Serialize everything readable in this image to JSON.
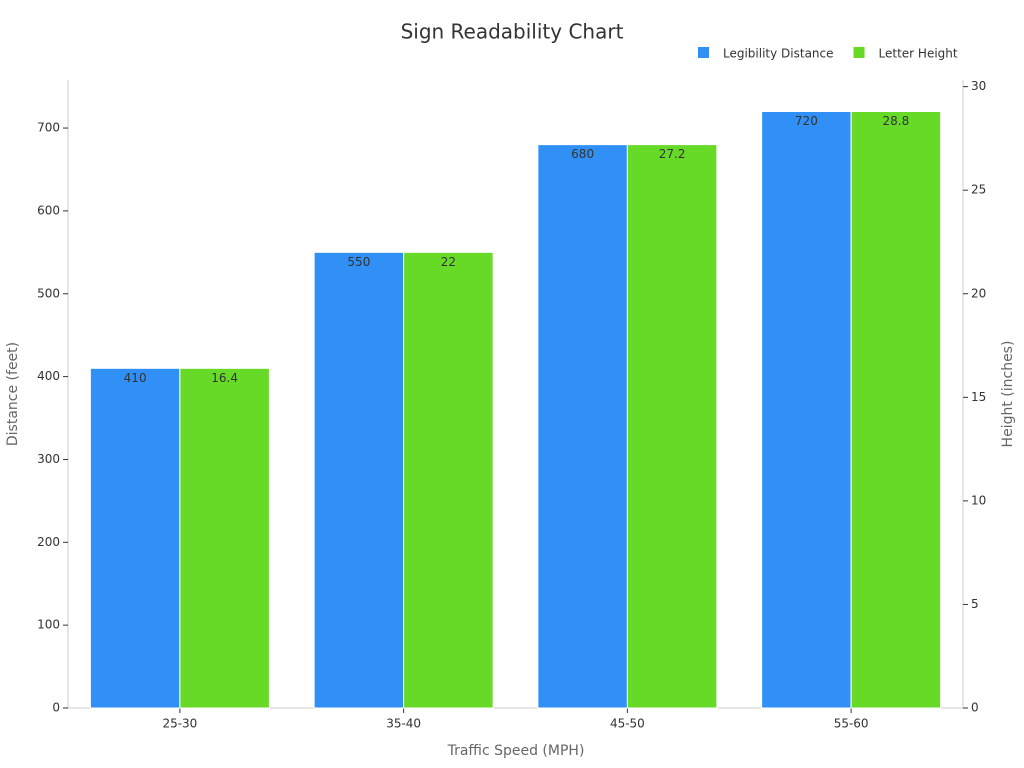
{
  "chart_data": {
    "type": "bar",
    "title": "Sign Readability Chart",
    "x_label": "Traffic Speed (MPH)",
    "y_label": "Distance (feet)",
    "y2_label": "Height (inches)",
    "categories": [
      "25-30",
      "35-40",
      "45-50",
      "55-60"
    ],
    "series": [
      {
        "name": "Legibility Distance",
        "color": "#3090f5",
        "values": [
          410,
          550,
          680,
          720
        ]
      },
      {
        "name": "Letter Height",
        "color": "#66da26",
        "axis": "y2",
        "values": [
          16.4,
          22,
          27.2,
          28.8
        ]
      }
    ],
    "ylim": [
      0,
      758
    ],
    "yticks": [
      0,
      100,
      200,
      300,
      400,
      500,
      600,
      700
    ],
    "y2lim": [
      0,
      30.32
    ],
    "y2ticks": [
      0,
      5,
      10,
      15,
      20,
      25,
      30
    ],
    "legend": "top-right",
    "grid": false
  }
}
